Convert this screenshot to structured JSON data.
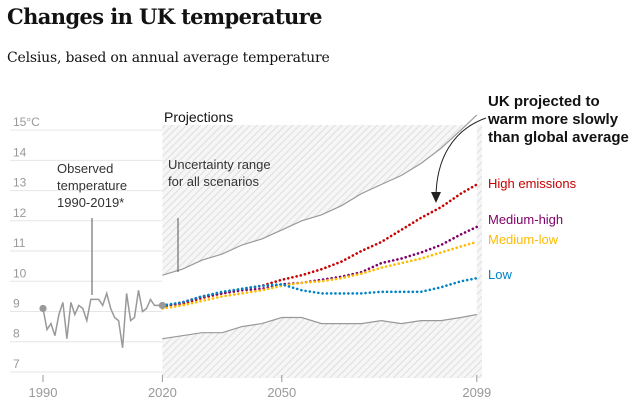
{
  "header": {
    "title": "Changes in UK temperature",
    "subtitle": "Celsius, based on annual average temperature"
  },
  "annotations": {
    "projections": "Projections",
    "uncertainty": [
      "Uncertainty range",
      "for all scenarios"
    ],
    "observed": [
      "Observed",
      "temperature",
      "1990-2019*"
    ],
    "callout": [
      "UK projected to",
      "warm more slowly",
      "than global average"
    ]
  },
  "colors": {
    "high": "#c70000",
    "medium_high": "#7d0068",
    "medium_low": "#ffbb00",
    "low": "#0084c6",
    "observed": "#999999",
    "range_edge": "#999999",
    "hatch": "#dddddd"
  },
  "chart_data": {
    "type": "line",
    "title": "Changes in UK temperature",
    "subtitle": "Celsius, based on annual average temperature",
    "xlabel": "",
    "ylabel": "",
    "xlim": [
      1987,
      2101
    ],
    "ylim": [
      6.8,
      15.5
    ],
    "y_ticks": [
      7,
      8,
      9,
      10,
      11,
      12,
      13,
      14
    ],
    "y_top_label": "15°C",
    "x_ticks": [
      1990,
      2020,
      2050,
      2099
    ],
    "x_tick_labels": [
      "1990",
      "2020",
      "2050",
      "2099"
    ],
    "projections_start": 2020,
    "observed": {
      "name": "Observed temperature 1990-2019*",
      "years": [
        1990,
        1991,
        1992,
        1993,
        1994,
        1995,
        1996,
        1997,
        1998,
        1999,
        2000,
        2001,
        2002,
        2003,
        2004,
        2005,
        2006,
        2007,
        2008,
        2009,
        2010,
        2011,
        2012,
        2013,
        2014,
        2015,
        2016,
        2017,
        2018,
        2019
      ],
      "values": [
        9.1,
        8.4,
        8.6,
        8.2,
        8.9,
        9.3,
        8.1,
        9.3,
        8.9,
        9.2,
        9.1,
        8.7,
        9.4,
        9.4,
        9.4,
        9.2,
        9.6,
        9.1,
        8.8,
        8.7,
        7.8,
        9.6,
        8.7,
        8.8,
        9.7,
        9.0,
        9.1,
        9.4,
        9.2,
        9.2
      ]
    },
    "uncertainty_range": {
      "name": "Uncertainty range for all scenarios",
      "years": [
        2020,
        2025,
        2030,
        2035,
        2040,
        2045,
        2050,
        2055,
        2060,
        2065,
        2070,
        2075,
        2080,
        2085,
        2090,
        2095,
        2099
      ],
      "upper": [
        10.2,
        10.4,
        10.7,
        10.9,
        11.2,
        11.4,
        11.7,
        12.0,
        12.2,
        12.5,
        12.9,
        13.2,
        13.5,
        13.9,
        14.4,
        15.0,
        15.5
      ],
      "lower": [
        8.1,
        8.2,
        8.3,
        8.3,
        8.5,
        8.6,
        8.8,
        8.8,
        8.6,
        8.6,
        8.6,
        8.7,
        8.6,
        8.7,
        8.7,
        8.8,
        8.9
      ]
    },
    "series": [
      {
        "name": "High emissions",
        "color": "#c70000",
        "years": [
          2020,
          2025,
          2030,
          2035,
          2040,
          2045,
          2050,
          2055,
          2060,
          2065,
          2070,
          2075,
          2080,
          2085,
          2090,
          2095,
          2099
        ],
        "values": [
          9.2,
          9.25,
          9.45,
          9.6,
          9.75,
          9.85,
          10.05,
          10.2,
          10.4,
          10.65,
          11.0,
          11.3,
          11.7,
          12.1,
          12.45,
          12.9,
          13.2
        ]
      },
      {
        "name": "Medium-high",
        "color": "#7d0068",
        "years": [
          2020,
          2025,
          2030,
          2035,
          2040,
          2045,
          2050,
          2055,
          2060,
          2065,
          2070,
          2075,
          2080,
          2085,
          2090,
          2095,
          2099
        ],
        "values": [
          9.15,
          9.3,
          9.5,
          9.6,
          9.7,
          9.75,
          9.9,
          9.95,
          10.05,
          10.15,
          10.3,
          10.6,
          10.75,
          10.95,
          11.2,
          11.55,
          11.8
        ]
      },
      {
        "name": "Medium-low",
        "color": "#ffbb00",
        "years": [
          2020,
          2025,
          2030,
          2035,
          2040,
          2045,
          2050,
          2055,
          2060,
          2065,
          2070,
          2075,
          2080,
          2085,
          2090,
          2095,
          2099
        ],
        "values": [
          9.1,
          9.2,
          9.35,
          9.5,
          9.6,
          9.7,
          9.85,
          9.95,
          10.0,
          10.1,
          10.25,
          10.45,
          10.6,
          10.75,
          10.95,
          11.15,
          11.3
        ]
      },
      {
        "name": "Low",
        "color": "#0084c6",
        "years": [
          2020,
          2025,
          2030,
          2035,
          2040,
          2045,
          2050,
          2055,
          2060,
          2065,
          2070,
          2075,
          2080,
          2085,
          2090,
          2095,
          2099
        ],
        "values": [
          9.2,
          9.3,
          9.5,
          9.65,
          9.75,
          9.85,
          9.9,
          9.7,
          9.6,
          9.6,
          9.6,
          9.65,
          9.65,
          9.65,
          9.8,
          10.0,
          10.1
        ]
      }
    ]
  }
}
